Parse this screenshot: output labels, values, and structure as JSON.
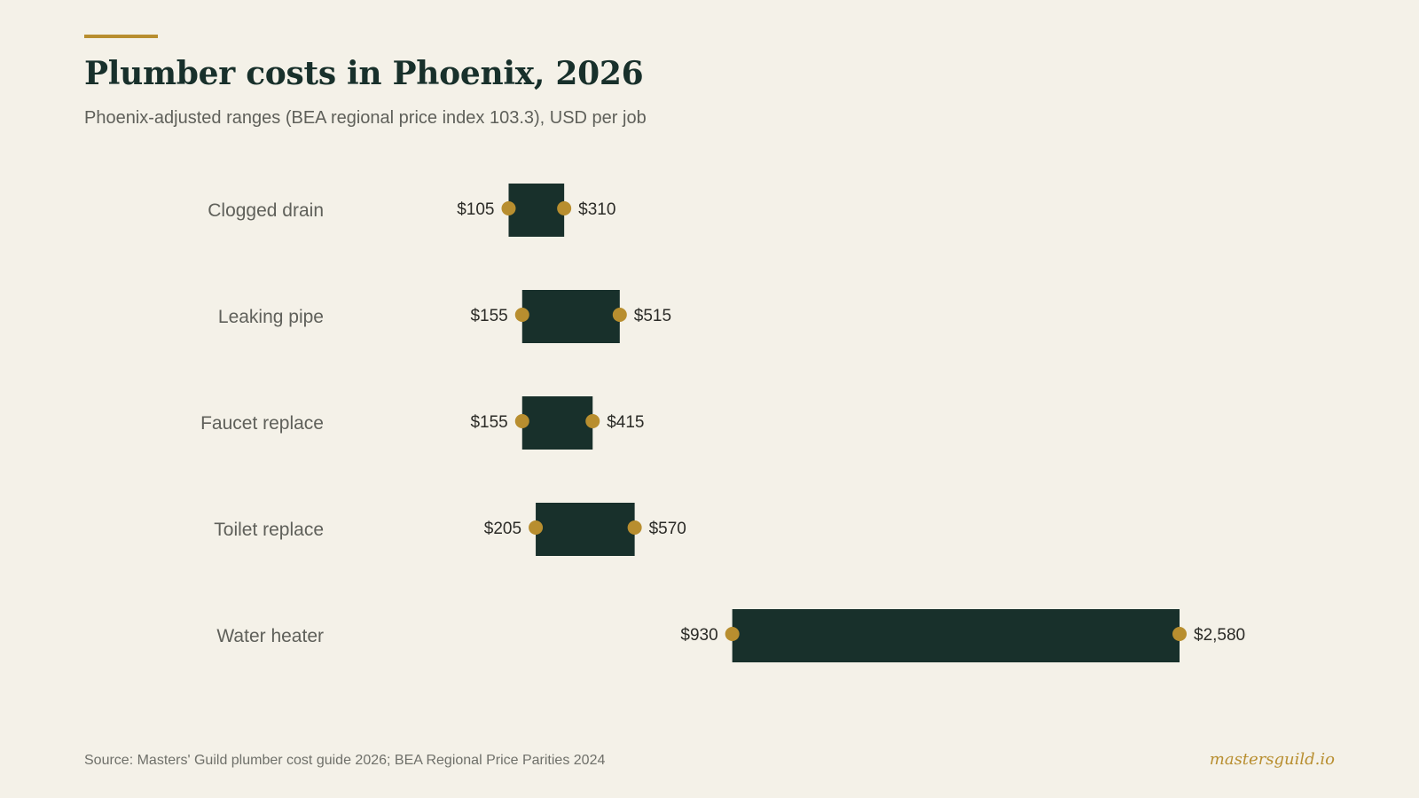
{
  "header": {
    "title": "Plumber costs in Phoenix, 2026",
    "subtitle": "Phoenix-adjusted ranges (BEA regional price index 103.3), USD per job"
  },
  "footer": {
    "source": "Source: Masters' Guild plumber cost guide 2026; BEA Regional Price Parities 2024",
    "brand": "mastersguild.io"
  },
  "colors": {
    "background": "#f4f1e8",
    "bar": "#18302b",
    "marker": "#b88e2f",
    "accent": "#b88e2f",
    "category_text": "#5f605a",
    "value_text": "#2b2b27"
  },
  "chart_data": {
    "type": "bar",
    "orientation": "horizontal-range",
    "title": "Plumber costs in Phoenix, 2026",
    "subtitle": "Phoenix-adjusted ranges (BEA regional price index 103.3), USD per job",
    "categories": [
      "Clogged drain",
      "Leaking pipe",
      "Faucet replace",
      "Toilet replace",
      "Water heater"
    ],
    "low": [
      105,
      155,
      155,
      205,
      930
    ],
    "high": [
      310,
      515,
      415,
      570,
      2580
    ],
    "low_labels": [
      "$105",
      "$155",
      "$155",
      "$205",
      "$930"
    ],
    "high_labels": [
      "$310",
      "$515",
      "$415",
      "$570",
      "$2,580"
    ],
    "xlim": [
      -600,
      2580
    ],
    "grid": false,
    "legend": "none"
  }
}
